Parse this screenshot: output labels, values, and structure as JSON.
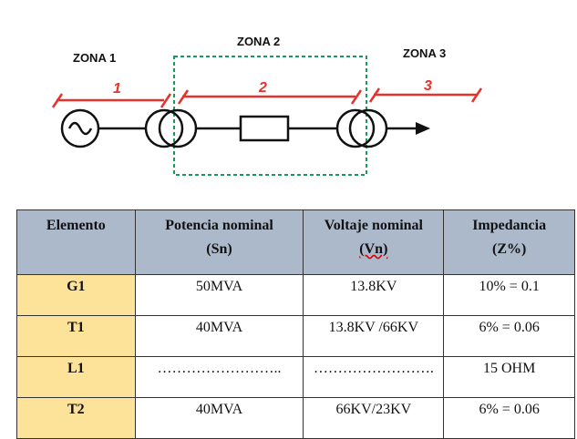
{
  "diagram": {
    "zones": [
      "ZONA 1",
      "ZONA 2",
      "ZONA 3"
    ],
    "segments": [
      "1",
      "2",
      "3"
    ]
  },
  "table": {
    "headers": [
      {
        "l1": "Elemento",
        "l2": ""
      },
      {
        "l1": "Potencia nominal",
        "l2": "(Sn)"
      },
      {
        "l1": "Voltaje nominal",
        "l2": "(Vn)"
      },
      {
        "l1": "Impedancia",
        "l2": "(Z%)"
      }
    ],
    "rows": [
      [
        "G1",
        "50MVA",
        "13.8KV",
        "10% = 0.1"
      ],
      [
        "T1",
        "40MVA",
        "13.8KV /66KV",
        "6% = 0.06"
      ],
      [
        "L1",
        "……………………..",
        "…………………….",
        "15 OHM"
      ],
      [
        "T2",
        "40MVA",
        "66KV/23KV",
        "6% = 0.06"
      ]
    ]
  },
  "colors": {
    "zone_box": "#1a9a5a",
    "zone_markers": "#e5322d",
    "header_bg": "#acb9ca",
    "element_bg": "#fde29a"
  }
}
